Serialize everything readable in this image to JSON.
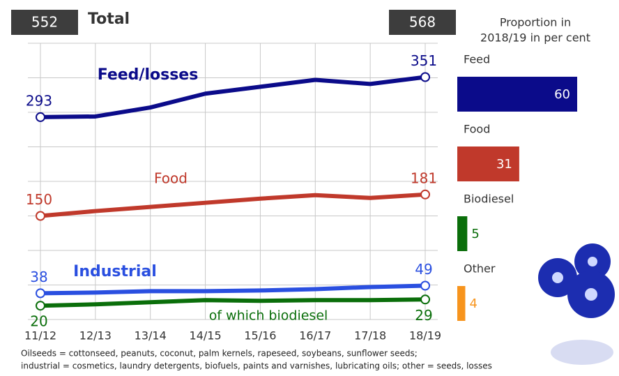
{
  "chart_data": {
    "type": "line",
    "title": "Total",
    "totals": {
      "start": 552,
      "end": 568
    },
    "categories": [
      "11/12",
      "12/13",
      "13/14",
      "14/15",
      "15/16",
      "16/17",
      "17/18",
      "18/19"
    ],
    "series": [
      {
        "name": "Feed/losses",
        "color": "#0b0b8a",
        "values": [
          293,
          294,
          307,
          327,
          337,
          347,
          341,
          351
        ]
      },
      {
        "name": "Food",
        "color": "#c0392b",
        "values": [
          150,
          157,
          163,
          169,
          175,
          180,
          176,
          181
        ]
      },
      {
        "name": "Industrial",
        "color": "#2a4fe0",
        "values": [
          38,
          39,
          41,
          41,
          42,
          44,
          47,
          49
        ]
      },
      {
        "name": "of which biodiesel",
        "color": "#0a6e0a",
        "values": [
          20,
          22,
          25,
          28,
          27,
          28,
          28,
          29
        ]
      }
    ],
    "ylim": [
      0,
      400
    ],
    "yticks": [
      0,
      50,
      100,
      150,
      200,
      250,
      300,
      350,
      400
    ],
    "grid": true,
    "proportion": {
      "title": [
        "Proportion in",
        "2018/19 in per cent"
      ],
      "categories": [
        "Feed",
        "Food",
        "Biodiesel",
        "Other"
      ],
      "values": [
        60,
        31,
        5,
        4
      ],
      "colors": [
        "#0b0b8a",
        "#c0392b",
        "#0a6e0a",
        "#f7941d"
      ]
    },
    "footnote": [
      "Oilseeds = cottonseed, peanuts, coconut, palm kernels, rapeseed, soybeans, sunflower seeds;",
      "industrial = cosmetics, laundry detergents, biofuels, paints and varnishes, lubricating oils; other = seeds, losses"
    ]
  }
}
